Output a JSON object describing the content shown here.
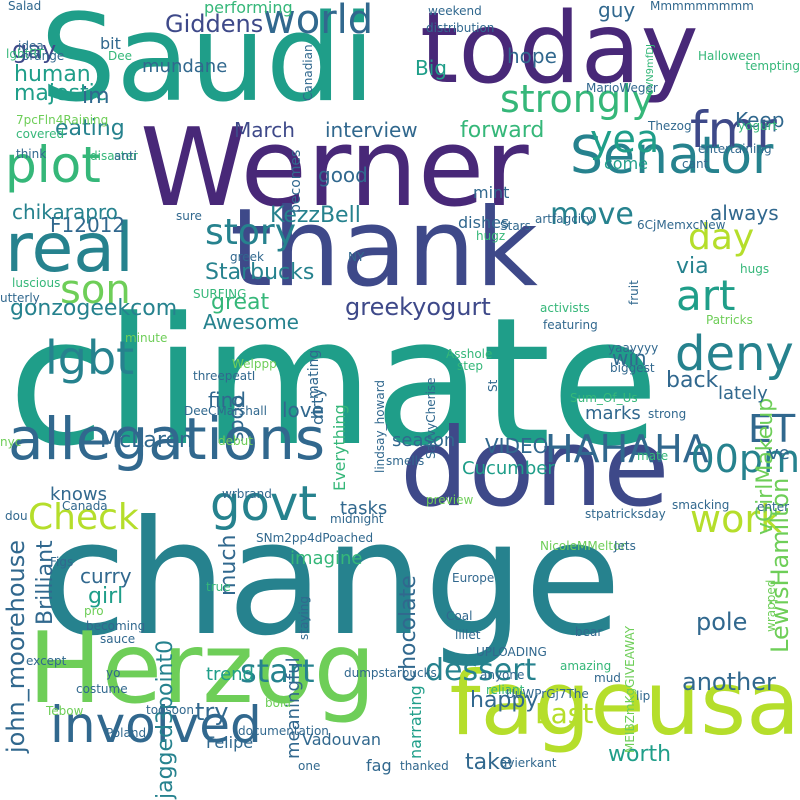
{
  "palette": [
    "#440154",
    "#482878",
    "#3e4989",
    "#31688e",
    "#26828e",
    "#1f9e89",
    "#35b779",
    "#6ece58",
    "#b5de2b",
    "#fde725"
  ],
  "words": [
    {
      "text": "climate",
      "c": 5
    },
    {
      "text": "change",
      "c": 4
    },
    {
      "text": "Saudi",
      "c": 5
    },
    {
      "text": "Werner",
      "c": 1
    },
    {
      "text": "thank",
      "c": 2
    },
    {
      "text": "done",
      "c": 2
    },
    {
      "text": "Herzog",
      "c": 7
    },
    {
      "text": "today",
      "c": 1
    },
    {
      "text": "fageusa",
      "c": 8
    },
    {
      "text": "real",
      "c": 4
    },
    {
      "text": "allegations",
      "c": 3
    },
    {
      "text": "Senator",
      "c": 4
    },
    {
      "text": "involved",
      "c": 3
    },
    {
      "text": "plot",
      "c": 6
    },
    {
      "text": "fmr",
      "c": 2
    },
    {
      "text": "world",
      "c": 3
    },
    {
      "text": "HAHAHA",
      "c": 3
    },
    {
      "text": "govt",
      "c": 4
    },
    {
      "text": "deny",
      "c": 4
    },
    {
      "text": "00pm",
      "c": 4
    },
    {
      "text": "Check",
      "c": 8
    },
    {
      "text": "lgbt",
      "c": 4
    },
    {
      "text": "strongly",
      "c": 6
    },
    {
      "text": "yea",
      "c": 5
    },
    {
      "text": "story",
      "c": 4
    },
    {
      "text": "son",
      "c": 7
    },
    {
      "text": "art",
      "c": 5
    },
    {
      "text": "move",
      "c": 4
    },
    {
      "text": "day",
      "c": 8
    },
    {
      "text": "work",
      "c": 8
    },
    {
      "text": "ET",
      "c": 3
    },
    {
      "text": "start",
      "c": 4
    },
    {
      "text": "dessert",
      "c": 4
    },
    {
      "text": "Last",
      "c": 8
    },
    {
      "text": "greekyogurt",
      "c": 2
    },
    {
      "text": "Starbucks",
      "c": 4
    },
    {
      "text": "john_moorehouse",
      "c": 3
    },
    {
      "text": "Giddens",
      "c": 2
    },
    {
      "text": "gay",
      "c": 2
    },
    {
      "text": "eating",
      "c": 4
    },
    {
      "text": "interview",
      "c": 3
    },
    {
      "text": "March",
      "c": 2
    },
    {
      "text": "forward",
      "c": 6
    },
    {
      "text": "F12012",
      "c": 3
    },
    {
      "text": "chikarapro",
      "c": 4
    },
    {
      "text": "KezzBell",
      "c": 4
    },
    {
      "text": "via",
      "c": 4
    },
    {
      "text": "always",
      "c": 3
    },
    {
      "text": "great",
      "c": 6
    },
    {
      "text": "Awesome",
      "c": 4
    },
    {
      "text": "gonzogeekcom",
      "c": 4
    },
    {
      "text": "McLaren",
      "c": 3
    },
    {
      "text": "love",
      "c": 3
    },
    {
      "text": "VIDEO",
      "c": 3
    },
    {
      "text": "Brilliant",
      "c": 3
    },
    {
      "text": "jagged3point0",
      "c": 4
    },
    {
      "text": "much",
      "c": 3
    },
    {
      "text": "chocolate",
      "c": 3
    },
    {
      "text": "curry",
      "c": 3
    },
    {
      "text": "girl",
      "c": 5
    },
    {
      "text": "try",
      "c": 3
    },
    {
      "text": "back",
      "c": 3
    },
    {
      "text": "pole",
      "c": 3
    },
    {
      "text": "happy",
      "c": 3
    },
    {
      "text": "take",
      "c": 3
    },
    {
      "text": "worth",
      "c": 5
    },
    {
      "text": "another",
      "c": 3
    },
    {
      "text": "vGirlMakeup",
      "c": 7
    },
    {
      "text": "LewisHamilton",
      "c": 7
    },
    {
      "text": "human",
      "c": 5
    },
    {
      "text": "majestic",
      "c": 5
    },
    {
      "text": "im",
      "c": 3
    },
    {
      "text": "hope",
      "c": 3
    },
    {
      "text": "guy",
      "c": 3
    },
    {
      "text": "Keep",
      "c": 3
    },
    {
      "text": "Big",
      "c": 5
    },
    {
      "text": "good",
      "c": 3
    },
    {
      "text": "performing",
      "c": 6
    },
    {
      "text": "bit",
      "c": 3
    },
    {
      "text": "mundane",
      "c": 3
    },
    {
      "text": "find",
      "c": 3
    },
    {
      "text": "sooo",
      "c": 3
    },
    {
      "text": "win",
      "c": 3
    },
    {
      "text": "lately",
      "c": 3
    },
    {
      "text": "marks",
      "c": 3
    },
    {
      "text": "ve",
      "c": 3
    },
    {
      "text": "Cucumber",
      "c": 5
    },
    {
      "text": "season",
      "c": 3
    },
    {
      "text": "knows",
      "c": 3
    },
    {
      "text": "tasks",
      "c": 3
    },
    {
      "text": "imagine",
      "c": 6
    },
    {
      "text": "meaningful",
      "c": 3
    },
    {
      "text": "trend",
      "c": 5
    },
    {
      "text": "Felipe",
      "c": 3
    },
    {
      "text": "Vadouvan",
      "c": 3
    },
    {
      "text": "fag",
      "c": 3
    },
    {
      "text": "narrating",
      "c": 5
    },
    {
      "text": "dirty",
      "c": 3
    },
    {
      "text": "Everything",
      "c": 6
    },
    {
      "text": "mating",
      "c": 3
    },
    {
      "text": "dishes",
      "c": 3
    },
    {
      "text": "mint",
      "c": 3
    },
    {
      "text": "come",
      "c": 5
    },
    {
      "text": "becomes",
      "c": 3
    },
    {
      "text": "Salad",
      "c": 3
    },
    {
      "text": "Mmmmmmmmm",
      "c": 3
    },
    {
      "text": "Halloween",
      "c": 6
    },
    {
      "text": "tempting",
      "c": 6
    },
    {
      "text": "yogurt",
      "c": 6
    },
    {
      "text": "Thezog",
      "c": 3
    },
    {
      "text": "MarioWeger",
      "c": 3
    },
    {
      "text": "distribution",
      "c": 3
    },
    {
      "text": "weekend",
      "c": 3
    },
    {
      "text": "idea",
      "c": 3
    },
    {
      "text": "lgbtRT",
      "c": 6
    },
    {
      "text": "orange",
      "c": 3
    },
    {
      "text": "Dee",
      "c": 6
    },
    {
      "text": "Canadian",
      "c": 3
    },
    {
      "text": "0VN9mfDJ",
      "c": 6
    },
    {
      "text": "7pcFln4Raining",
      "c": 7
    },
    {
      "text": "covered",
      "c": 6
    },
    {
      "text": "think",
      "c": 3
    },
    {
      "text": "disaster",
      "c": 6
    },
    {
      "text": "anti",
      "c": 3
    },
    {
      "text": "cant",
      "c": 3
    },
    {
      "text": "entertaining",
      "c": 3
    },
    {
      "text": "sure",
      "c": 3
    },
    {
      "text": "6CjMemxcNew",
      "c": 3
    },
    {
      "text": "artfagcity",
      "c": 3
    },
    {
      "text": "hugz",
      "c": 6
    },
    {
      "text": "Stars",
      "c": 3
    },
    {
      "text": "greek",
      "c": 3
    },
    {
      "text": "NY",
      "c": 3
    },
    {
      "text": "hugs",
      "c": 6
    },
    {
      "text": "luscious",
      "c": 6
    },
    {
      "text": "utterly",
      "c": 3
    },
    {
      "text": "SURFING",
      "c": 6
    },
    {
      "text": "activists",
      "c": 6
    },
    {
      "text": "fruit",
      "c": 3
    },
    {
      "text": "Patricks",
      "c": 7
    },
    {
      "text": "featuring",
      "c": 3
    },
    {
      "text": "minute",
      "c": 7
    },
    {
      "text": "lindsay_howard",
      "c": 3
    },
    {
      "text": "SavvyCherise",
      "c": 3
    },
    {
      "text": "Asshole",
      "c": 6
    },
    {
      "text": "step",
      "c": 6
    },
    {
      "text": "yaayyyy",
      "c": 3
    },
    {
      "text": "biggest",
      "c": 3
    },
    {
      "text": "Welppp",
      "c": 7
    },
    {
      "text": "threepeatI",
      "c": 3
    },
    {
      "text": "DeeCMarshall",
      "c": 3
    },
    {
      "text": "St",
      "c": 3
    },
    {
      "text": "Sum_Of_Us",
      "c": 6
    },
    {
      "text": "strong",
      "c": 3
    },
    {
      "text": "mate",
      "c": 6
    },
    {
      "text": "nyc",
      "c": 7
    },
    {
      "text": "debut",
      "c": 7
    },
    {
      "text": "smells",
      "c": 3
    },
    {
      "text": "wrbrand",
      "c": 3
    },
    {
      "text": "smacking",
      "c": 3
    },
    {
      "text": "enter",
      "c": 3
    },
    {
      "text": "preview",
      "c": 7
    },
    {
      "text": "stpatricksday",
      "c": 3
    },
    {
      "text": "dou",
      "c": 3
    },
    {
      "text": "Canada",
      "c": 3
    },
    {
      "text": "midnight",
      "c": 3
    },
    {
      "text": "SNm2pp4dPoached",
      "c": 3
    },
    {
      "text": "NicoleMMelton",
      "c": 7
    },
    {
      "text": "Jets",
      "c": 3
    },
    {
      "text": "Figs",
      "c": 3
    },
    {
      "text": "true",
      "c": 6
    },
    {
      "text": "Europe",
      "c": 3
    },
    {
      "text": "pro",
      "c": 7
    },
    {
      "text": "becoming",
      "c": 3
    },
    {
      "text": "sauce",
      "c": 3
    },
    {
      "text": "staying",
      "c": 3
    },
    {
      "text": "Coal",
      "c": 3
    },
    {
      "text": "lillet",
      "c": 3
    },
    {
      "text": "UPLOADING",
      "c": 3
    },
    {
      "text": "bear",
      "c": 3
    },
    {
      "text": "MEIBZmKgGIVEAWAY",
      "c": 7
    },
    {
      "text": "wrapped",
      "c": 7
    },
    {
      "text": "except",
      "c": 3
    },
    {
      "text": "yo",
      "c": 3
    },
    {
      "text": "anyone",
      "c": 3
    },
    {
      "text": "dumpstarbucks",
      "c": 3
    },
    {
      "text": "amazing",
      "c": 6
    },
    {
      "text": "mud",
      "c": 3
    },
    {
      "text": "costume",
      "c": 3
    },
    {
      "text": "reliant",
      "c": 6
    },
    {
      "text": "bold",
      "c": 7
    },
    {
      "text": "UuWPrGj7The",
      "c": 3
    },
    {
      "text": "lip",
      "c": 3
    },
    {
      "text": "Tebow",
      "c": 7
    },
    {
      "text": "toosoon",
      "c": 3
    },
    {
      "text": "documentation",
      "c": 3
    },
    {
      "text": "Poland",
      "c": 3
    },
    {
      "text": "thanked",
      "c": 3
    },
    {
      "text": "avierkant",
      "c": 3
    },
    {
      "text": "one",
      "c": 3
    }
  ]
}
